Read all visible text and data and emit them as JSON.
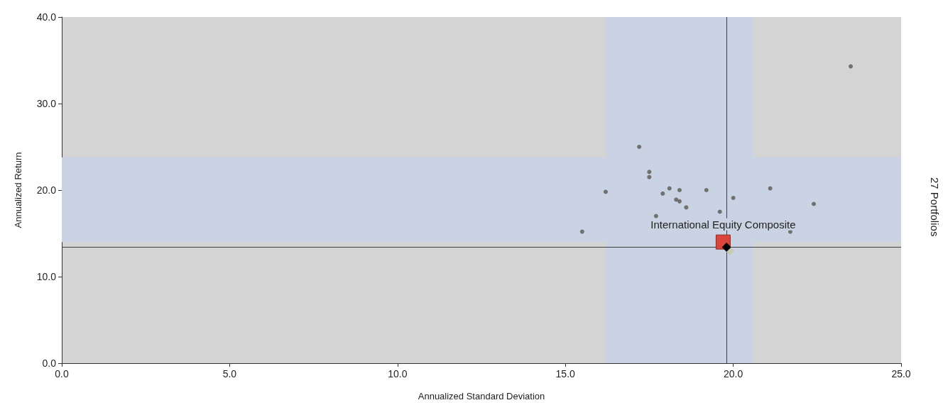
{
  "chart_data": {
    "type": "scatter",
    "xlabel": "Annualized Standard Deviation",
    "ylabel": "Annualized Return",
    "xlim": [
      0,
      25
    ],
    "xticks": [
      {
        "value": 0,
        "label": "0.0"
      },
      {
        "value": 5,
        "label": "5.0"
      },
      {
        "value": 10,
        "label": "10.0"
      },
      {
        "value": 15,
        "label": "15.0"
      },
      {
        "value": 20,
        "label": "20.0"
      },
      {
        "value": 25,
        "label": "25.0"
      }
    ],
    "ylim": [
      0,
      40
    ],
    "yticks": [
      {
        "value": 0,
        "label": "0.0"
      },
      {
        "value": 10,
        "label": "10.0"
      },
      {
        "value": 20,
        "label": "20.0"
      },
      {
        "value": 30,
        "label": "30.0"
      },
      {
        "value": 40,
        "label": "40.0"
      }
    ],
    "grid": false,
    "series": [
      {
        "color": "#707070",
        "marker": "circle",
        "x": [
          17.2,
          17.5,
          17.5,
          16.2,
          18.1,
          18.4,
          19.2,
          17.9,
          18.3,
          18.4,
          18.6,
          19.6,
          20.0,
          21.1,
          22.4,
          21.7,
          15.5,
          17.7,
          23.5
        ],
        "values": [
          25.0,
          22.1,
          21.5,
          19.8,
          20.2,
          20.0,
          20.0,
          19.6,
          18.9,
          18.7,
          18.0,
          17.5,
          19.1,
          20.2,
          18.4,
          15.2,
          15.2,
          17.0,
          34.3
        ]
      },
      {
        "name": "International Equity Composite",
        "color": "#d9463b",
        "marker": "square",
        "x": [
          19.7
        ],
        "values": [
          14.0
        ]
      },
      {
        "color": "#c8c8b8",
        "marker": "diamond",
        "x": [
          19.9
        ],
        "values": [
          13.0
        ]
      },
      {
        "color": "#000000",
        "marker": "diamond",
        "x": [
          19.8
        ],
        "values": [
          13.4
        ]
      }
    ],
    "ref_lines": [
      {
        "axis": "x",
        "value": 19.8,
        "color": "#404040"
      },
      {
        "axis": "y",
        "value": 13.4,
        "color": "#404040"
      }
    ],
    "bands": [
      {
        "axis": "x",
        "from": 16.2,
        "to": 20.6,
        "color": "#c9d3e3"
      },
      {
        "axis": "y",
        "from": 14.0,
        "to": 23.8,
        "color": "#c9d3e3"
      }
    ],
    "annotations": [
      "27 Portfolios"
    ]
  }
}
